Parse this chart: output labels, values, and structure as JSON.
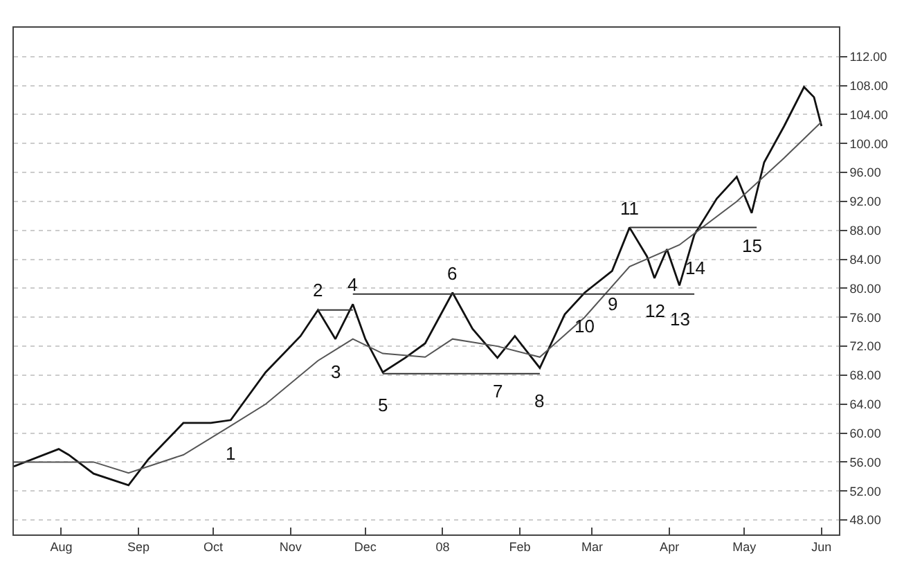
{
  "chart_data": {
    "type": "line",
    "x": [
      "2007-07-13",
      "2007-07-31",
      "2007-08-04",
      "2007-08-14",
      "2007-08-28",
      "2007-09-05",
      "2007-09-19",
      "2007-09-30",
      "2007-10-08",
      "2007-10-22",
      "2007-11-05",
      "2007-11-12",
      "2007-11-19",
      "2007-11-26",
      "2007-12-01",
      "2007-12-08",
      "2007-12-17",
      "2007-12-25",
      "2008-01-05",
      "2008-01-13",
      "2008-01-23",
      "2008-01-30",
      "2008-02-09",
      "2008-02-19",
      "2008-02-27",
      "2008-03-09",
      "2008-03-16",
      "2008-03-23",
      "2008-03-26",
      "2008-03-31",
      "2008-04-05",
      "2008-04-11",
      "2008-04-20",
      "2008-04-28",
      "2008-05-04",
      "2008-05-09",
      "2008-05-17",
      "2008-05-25",
      "2008-05-29",
      "2008-06-01"
    ],
    "series": [
      {
        "color": "#111111",
        "values": [
          55.4,
          57.8,
          57,
          54.4,
          52.8,
          56.4,
          61.4,
          61.4,
          61.8,
          68.4,
          73.4,
          77,
          73,
          77.8,
          73,
          68.4,
          70.4,
          72.4,
          79.4,
          74.4,
          70.4,
          73.4,
          69,
          76.4,
          79.4,
          82.4,
          88.4,
          84.4,
          81.4,
          85.4,
          80.4,
          87.4,
          92.4,
          95.4,
          90.4,
          97.4,
          102.4,
          107.8,
          106.4,
          102.4
        ]
      },
      {
        "color": "#555555",
        "x": [
          "2007-07-13",
          "2007-08-14",
          "2007-08-28",
          "2007-09-19",
          "2007-10-08",
          "2007-10-22",
          "2007-11-12",
          "2007-11-26",
          "2007-12-08",
          "2007-12-25",
          "2008-01-05",
          "2008-01-23",
          "2008-02-09",
          "2008-02-27",
          "2008-03-16",
          "2008-04-05",
          "2008-04-28",
          "2008-05-17",
          "2008-06-01"
        ],
        "values": [
          56,
          56,
          54.5,
          57,
          61,
          64,
          70,
          73,
          71,
          70.5,
          73,
          72,
          70.5,
          76,
          83,
          86,
          92,
          98,
          103
        ]
      },
      {
        "color": "#333333",
        "x": [
          "2007-11-12",
          "2007-11-26"
        ],
        "values": [
          77,
          77
        ]
      },
      {
        "color": "#333333",
        "x": [
          "2007-11-26",
          "2008-04-11"
        ],
        "values": [
          79.2,
          79.2
        ]
      },
      {
        "color": "#333333",
        "x": [
          "2007-12-08",
          "2008-02-09"
        ],
        "values": [
          68.2,
          68.2
        ]
      },
      {
        "color": "#333333",
        "x": [
          "2008-03-16",
          "2008-05-06"
        ],
        "values": [
          88.4,
          88.4
        ]
      }
    ],
    "annotations": [
      {
        "text": "1",
        "x": "2007-10-08",
        "y": 61.8
      },
      {
        "text": "2",
        "x": "2007-11-12",
        "y": 77
      },
      {
        "text": "3",
        "x": "2007-11-19",
        "y": 73
      },
      {
        "text": "4",
        "x": "2007-11-26",
        "y": 77.8
      },
      {
        "text": "5",
        "x": "2007-12-08",
        "y": 68.4
      },
      {
        "text": "6",
        "x": "2008-01-05",
        "y": 79.4
      },
      {
        "text": "7",
        "x": "2008-01-23",
        "y": 70.4
      },
      {
        "text": "8",
        "x": "2008-02-09",
        "y": 69
      },
      {
        "text": "9",
        "x": "2008-03-09",
        "y": 82.4
      },
      {
        "text": "10",
        "x": "2008-02-27",
        "y": 79.4
      },
      {
        "text": "11",
        "x": "2008-03-16",
        "y": 88.4
      },
      {
        "text": "12",
        "x": "2008-03-26",
        "y": 81.4
      },
      {
        "text": "13",
        "x": "2008-04-05",
        "y": 80.4
      },
      {
        "text": "14",
        "x": "2008-04-11",
        "y": 87.4
      },
      {
        "text": "15",
        "x": "2008-05-04",
        "y": 90.4
      }
    ],
    "xlim": [
      "2007-07-13",
      "2008-06-08"
    ],
    "xticks": [
      {
        "value": "2007-08-01",
        "label": "Aug"
      },
      {
        "value": "2007-09-01",
        "label": "Sep"
      },
      {
        "value": "2007-10-01",
        "label": "Oct"
      },
      {
        "value": "2007-11-01",
        "label": "Nov"
      },
      {
        "value": "2007-12-01",
        "label": "Dec"
      },
      {
        "value": "2008-01-01",
        "label": "08"
      },
      {
        "value": "2008-02-01",
        "label": "Feb"
      },
      {
        "value": "2008-03-01",
        "label": "Mar"
      },
      {
        "value": "2008-04-01",
        "label": "Apr"
      },
      {
        "value": "2008-05-01",
        "label": "May"
      },
      {
        "value": "2008-06-01",
        "label": "Jun"
      }
    ],
    "ylim": [
      46,
      116
    ],
    "yticks": [
      {
        "value": 48,
        "label": "48.00"
      },
      {
        "value": 52,
        "label": "52.00"
      },
      {
        "value": 56,
        "label": "56.00"
      },
      {
        "value": 60,
        "label": "60.00"
      },
      {
        "value": 64,
        "label": "64.00"
      },
      {
        "value": 68,
        "label": "68.00"
      },
      {
        "value": 72,
        "label": "72.00"
      },
      {
        "value": 76,
        "label": "76.00"
      },
      {
        "value": 80,
        "label": "80.00"
      },
      {
        "value": 84,
        "label": "84.00"
      },
      {
        "value": 88,
        "label": "88.00"
      },
      {
        "value": 92,
        "label": "92.00"
      },
      {
        "value": 96,
        "label": "96.00"
      },
      {
        "value": 100,
        "label": "100.00"
      },
      {
        "value": 104,
        "label": "104.00"
      },
      {
        "value": 108,
        "label": "108.00"
      },
      {
        "value": 112,
        "label": "112.00"
      }
    ],
    "grid": "y",
    "marker": "none",
    "line_style": "solid"
  }
}
